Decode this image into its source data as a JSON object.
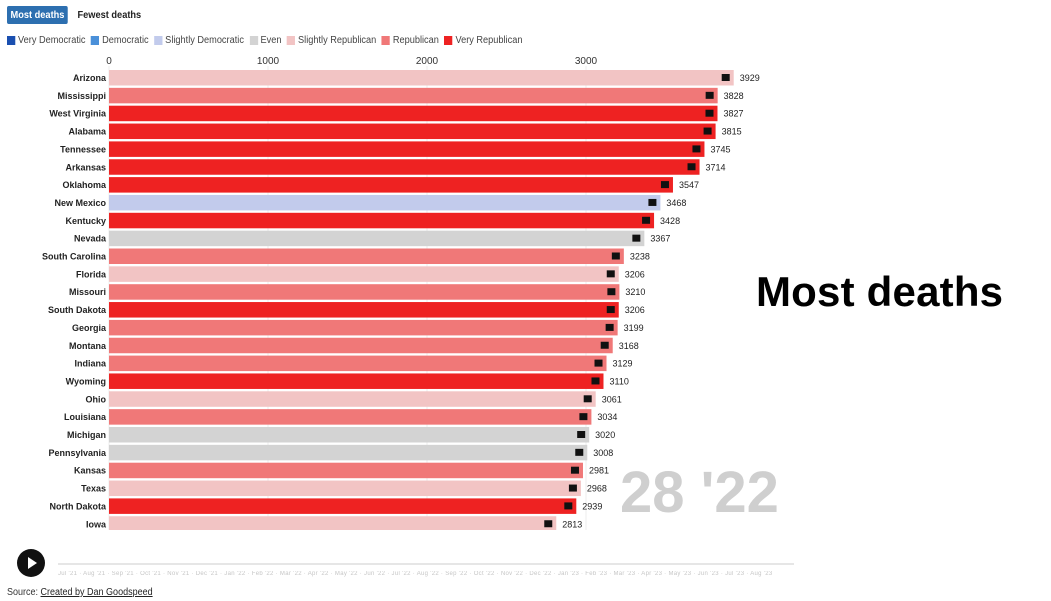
{
  "tabs": [
    {
      "label": "Most deaths",
      "active": true
    },
    {
      "label": "Fewest deaths",
      "active": false
    }
  ],
  "legend": [
    {
      "label": "Very Democratic",
      "color": "#1a4fb0"
    },
    {
      "label": "Democratic",
      "color": "#4a90d9"
    },
    {
      "label": "Slightly Democratic",
      "color": "#c2cbec"
    },
    {
      "label": "Even",
      "color": "#d3d3d3"
    },
    {
      "label": "Slightly Republican",
      "color": "#f2c4c4"
    },
    {
      "label": "Republican",
      "color": "#f07878"
    },
    {
      "label": "Very Republican",
      "color": "#ee2222"
    }
  ],
  "overlay_title": "Most deaths",
  "date_watermark": "28 '22",
  "source": {
    "prefix": "Source:",
    "link_text": "Created by Dan Goodspeed"
  },
  "chart_data": {
    "type": "bar",
    "orientation": "horizontal",
    "xlim": [
      0,
      4000
    ],
    "x_ticks": [
      0,
      1000,
      2000,
      3000
    ],
    "x_tick_labels": [
      "0",
      "1000",
      "2000",
      "3000"
    ],
    "grid": true,
    "categories": [
      "Arizona",
      "Mississippi",
      "West Virginia",
      "Alabama",
      "Tennessee",
      "Arkansas",
      "Oklahoma",
      "New Mexico",
      "Kentucky",
      "Nevada",
      "South Carolina",
      "Florida",
      "Missouri",
      "South Dakota",
      "Georgia",
      "Montana",
      "Indiana",
      "Wyoming",
      "Ohio",
      "Louisiana",
      "Michigan",
      "Pennsylvania",
      "Kansas",
      "Texas",
      "North Dakota",
      "Iowa"
    ],
    "values": [
      3929,
      3828,
      3827,
      3815,
      3745,
      3714,
      3547,
      3468,
      3428,
      3367,
      3238,
      3206,
      3210,
      3206,
      3199,
      3168,
      3129,
      3110,
      3061,
      3034,
      3020,
      3008,
      2981,
      2968,
      2939,
      2813
    ],
    "value_labels": [
      "3929",
      "3828",
      "3827",
      "3815",
      "3745",
      "3714",
      "3547",
      "3468",
      "3428",
      "3367",
      "3238",
      "3206",
      "3210",
      "3206",
      "3199",
      "3168",
      "3129",
      "3110",
      "3061",
      "3034",
      "3020",
      "3008",
      "2981",
      "2968",
      "2939",
      "2813"
    ],
    "leaning": [
      "Slightly Republican",
      "Republican",
      "Very Republican",
      "Very Republican",
      "Very Republican",
      "Very Republican",
      "Very Republican",
      "Slightly Democratic",
      "Very Republican",
      "Even",
      "Republican",
      "Slightly Republican",
      "Republican",
      "Very Republican",
      "Republican",
      "Republican",
      "Republican",
      "Very Republican",
      "Slightly Republican",
      "Republican",
      "Even",
      "Even",
      "Republican",
      "Slightly Republican",
      "Very Republican",
      "Slightly Republican"
    ]
  }
}
